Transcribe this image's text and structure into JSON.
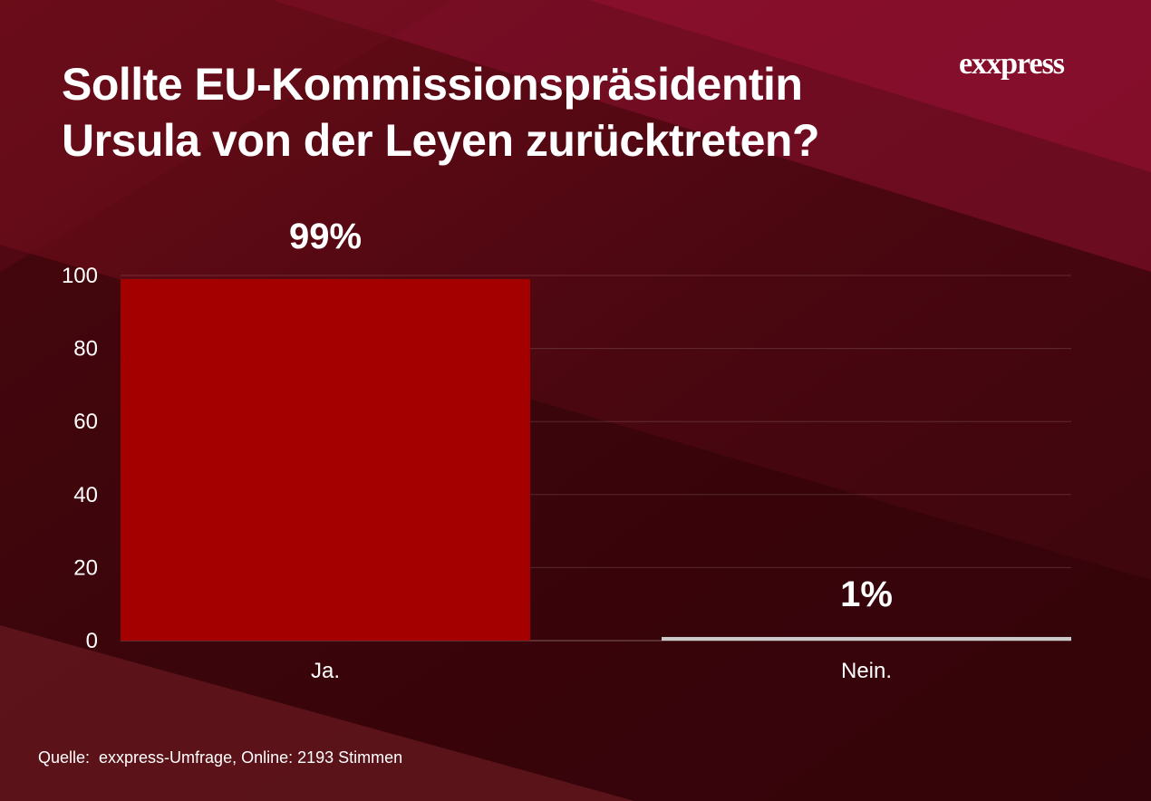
{
  "header": {
    "title": "Sollte EU-Kommissionspräsidentin Ursula von der Leyen zurücktreten?",
    "logo_text": "exxpress"
  },
  "chart_data": {
    "type": "bar",
    "title": "Sollte EU-Kommissionspräsidentin Ursula von der Leyen zurücktreten?",
    "categories": [
      "Ja.",
      "Nein."
    ],
    "values": [
      99,
      1
    ],
    "data_labels": [
      "99%",
      "1%"
    ],
    "bar_colors": [
      "#a50000",
      "#c9c9c9"
    ],
    "ylim": [
      0,
      100
    ],
    "yticks": [
      0,
      20,
      40,
      60,
      80,
      100
    ],
    "grid": true,
    "legend": "none",
    "xlabel": "",
    "ylabel": ""
  },
  "footer": {
    "source": "Quelle:  exxpress-Umfrage, Online: 2193 Stimmen"
  },
  "colors": {
    "background": "#4a0710",
    "accent": "#a50000",
    "text": "#ffffff"
  }
}
